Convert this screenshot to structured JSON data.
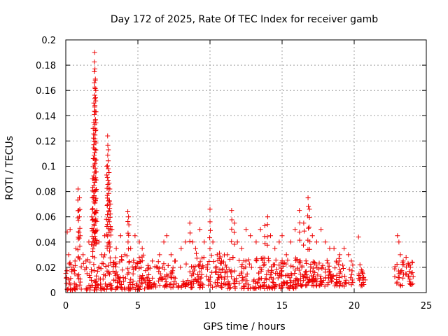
{
  "chart_data": {
    "type": "scatter",
    "title": "Day 172 of 2025, Rate Of TEC Index for receiver gamb",
    "xlabel": "GPS time / hours",
    "ylabel": "ROTI / TECUs",
    "xlim": [
      0,
      25
    ],
    "ylim": [
      0,
      0.2
    ],
    "x_ticks": [
      0,
      5,
      10,
      15,
      20,
      25
    ],
    "x_tick_labels": [
      "0",
      "5",
      "10",
      "15",
      "20",
      "25"
    ],
    "y_ticks": [
      0,
      0.02,
      0.04,
      0.06,
      0.08,
      0.1,
      0.12,
      0.14,
      0.16,
      0.18,
      0.2
    ],
    "y_tick_labels": [
      "0",
      "0.02",
      "0.04",
      "0.06",
      "0.08",
      "0.1",
      "0.12",
      "0.14",
      "0.16",
      "0.18",
      "0.2"
    ],
    "grid": true,
    "marker": "+",
    "color": "#ee0000",
    "series": [
      {
        "name": "ROTI",
        "points": [
          [
            0.05,
            0.012
          ],
          [
            0.1,
            0.048
          ],
          [
            0.2,
            0.03
          ],
          [
            0.3,
            0.05
          ],
          [
            0.35,
            0.022
          ],
          [
            0.5,
            0.018
          ],
          [
            0.7,
            0.035
          ],
          [
            0.85,
            0.082
          ],
          [
            0.9,
            0.065
          ],
          [
            0.95,
            0.075
          ],
          [
            1.0,
            0.045
          ],
          [
            1.2,
            0.03
          ],
          [
            1.4,
            0.025
          ],
          [
            1.6,
            0.04
          ],
          [
            1.8,
            0.06
          ],
          [
            1.85,
            0.09
          ],
          [
            1.9,
            0.13
          ],
          [
            1.95,
            0.15
          ],
          [
            2.0,
            0.19
          ],
          [
            2.02,
            0.177
          ],
          [
            2.05,
            0.169
          ],
          [
            2.08,
            0.16
          ],
          [
            2.1,
            0.105
          ],
          [
            2.15,
            0.065
          ],
          [
            2.3,
            0.04
          ],
          [
            2.5,
            0.03
          ],
          [
            2.7,
            0.045
          ],
          [
            2.85,
            0.1
          ],
          [
            2.9,
            0.124
          ],
          [
            2.95,
            0.113
          ],
          [
            3.0,
            0.095
          ],
          [
            3.05,
            0.082
          ],
          [
            3.1,
            0.07
          ],
          [
            3.2,
            0.05
          ],
          [
            3.5,
            0.035
          ],
          [
            3.8,
            0.045
          ],
          [
            4.1,
            0.03
          ],
          [
            4.3,
            0.064
          ],
          [
            4.35,
            0.06
          ],
          [
            4.5,
            0.035
          ],
          [
            4.8,
            0.045
          ],
          [
            5.1,
            0.04
          ],
          [
            5.3,
            0.035
          ],
          [
            6.0,
            0.025
          ],
          [
            6.5,
            0.03
          ],
          [
            6.8,
            0.04
          ],
          [
            7.0,
            0.045
          ],
          [
            7.3,
            0.03
          ],
          [
            7.6,
            0.025
          ],
          [
            8.0,
            0.035
          ],
          [
            8.3,
            0.04
          ],
          [
            8.6,
            0.055
          ],
          [
            8.8,
            0.04
          ],
          [
            9.0,
            0.035
          ],
          [
            9.3,
            0.05
          ],
          [
            9.6,
            0.04
          ],
          [
            10.0,
            0.066
          ],
          [
            10.2,
            0.04
          ],
          [
            10.5,
            0.03
          ],
          [
            10.8,
            0.025
          ],
          [
            11.2,
            0.03
          ],
          [
            11.5,
            0.065
          ],
          [
            11.7,
            0.055
          ],
          [
            11.9,
            0.04
          ],
          [
            12.2,
            0.035
          ],
          [
            12.5,
            0.05
          ],
          [
            12.8,
            0.045
          ],
          [
            13.2,
            0.04
          ],
          [
            13.5,
            0.05
          ],
          [
            13.8,
            0.053
          ],
          [
            14.0,
            0.06
          ],
          [
            14.2,
            0.045
          ],
          [
            14.5,
            0.035
          ],
          [
            14.8,
            0.04
          ],
          [
            15.0,
            0.045
          ],
          [
            15.3,
            0.03
          ],
          [
            15.6,
            0.04
          ],
          [
            15.9,
            0.05
          ],
          [
            16.2,
            0.065
          ],
          [
            16.5,
            0.055
          ],
          [
            16.8,
            0.075
          ],
          [
            16.9,
            0.066
          ],
          [
            17.1,
            0.045
          ],
          [
            17.4,
            0.04
          ],
          [
            17.7,
            0.05
          ],
          [
            18.0,
            0.04
          ],
          [
            18.3,
            0.035
          ],
          [
            18.6,
            0.035
          ],
          [
            19.0,
            0.03
          ],
          [
            19.3,
            0.035
          ],
          [
            19.6,
            0.03
          ],
          [
            19.8,
            0.025
          ],
          [
            20.3,
            0.044
          ],
          [
            20.4,
            0.022
          ],
          [
            20.5,
            0.018
          ],
          [
            20.6,
            0.015
          ],
          [
            23.0,
            0.045
          ],
          [
            23.1,
            0.04
          ],
          [
            23.2,
            0.03
          ],
          [
            23.4,
            0.025
          ],
          [
            23.6,
            0.028
          ],
          [
            23.9,
            0.02
          ]
        ],
        "bands": [
          {
            "x_start": 0.0,
            "x_end": 5.5,
            "y_base": 0.002,
            "y_top": 0.03,
            "density": 6
          },
          {
            "x_start": 5.5,
            "x_end": 9.0,
            "y_base": 0.004,
            "y_top": 0.025,
            "density": 5
          },
          {
            "x_start": 9.0,
            "x_end": 11.0,
            "y_base": 0.004,
            "y_top": 0.032,
            "density": 6
          },
          {
            "x_start": 11.0,
            "x_end": 16.0,
            "y_base": 0.003,
            "y_top": 0.028,
            "density": 6
          },
          {
            "x_start": 16.0,
            "x_end": 19.9,
            "y_base": 0.005,
            "y_top": 0.027,
            "density": 6
          },
          {
            "x_start": 20.2,
            "x_end": 20.8,
            "y_base": 0.005,
            "y_top": 0.02,
            "density": 4
          },
          {
            "x_start": 22.8,
            "x_end": 24.1,
            "y_base": 0.005,
            "y_top": 0.025,
            "density": 5
          }
        ]
      }
    ]
  }
}
